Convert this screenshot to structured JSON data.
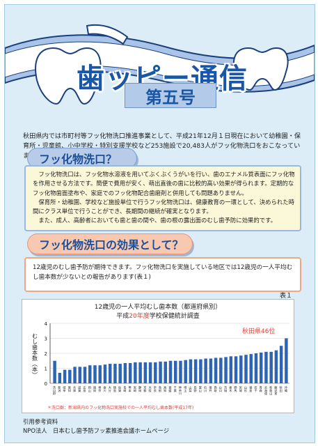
{
  "masthead": {
    "title": "歯ッピー通信",
    "issue": "第五号"
  },
  "intro": "秋田県内では市町村等フッ化物洗口推進事業として、平成21年12月１日現在において幼稚園・保育所・児童館、小中学校・特別支援学校など253施設で20,483人がフッ化物洗口をおこなっています。",
  "section1": {
    "heading": "フッ化物洗口？",
    "paragraphs": [
      "フッ化物洗口は、フッ化物水溶液を用いてぶくぶくうがいを行い、歯のエナメル質表面にフッ化物を作用させる方法です。簡便で費用が安く、萌出直後の歯に比較的高い効果が得られます。定期的なフッ化物歯面塗布や、家庭でのフッ化物配合歯磨剤と併用しても問題ありません。",
      "保育所・幼稚園、学校など施設単位で行うフッ化物洗口は、健康教育の一環として、決められた時間にクラス単位で行うことができ、長期間の継続が確実となります。",
      "また、成人、高齢者においても歯と歯の間や、歯の根の露出面のむし歯予防に効果的です。"
    ]
  },
  "section2": {
    "heading": "フッ化物洗口の効果として？",
    "text": "12歳児のむし歯予防が期待できます。フッ化物洗口を実施している地区では12歳児の一人平均むし歯本数が少ないとの報告があります(表１)"
  },
  "table_label": "表１",
  "chart_data": {
    "type": "bar",
    "title_line1": "12歳児の一人平均むし歯本数（都道府県別）",
    "title_line2_pre": "平成",
    "title_line2_highlight": "20年度",
    "title_line2_post": "学校保健統計調査",
    "ylabel": "むし歯本数（本）",
    "ylim": [
      0,
      4
    ],
    "yticks": [
      0,
      1,
      2,
      3,
      4
    ],
    "callout": "秋田県46位",
    "footnote": "＊洗口群：新潟県内のフッ化物洗口実施校での一人平均むし歯本数(平成17年)",
    "categories": [
      "洗口群",
      "新潟",
      "岐阜",
      "愛知",
      "兵庫",
      "滋賀",
      "広島",
      "岡山",
      "福岡",
      "東京",
      "香川",
      "大分",
      "徳島",
      "佐賀",
      "長崎",
      "熊本",
      "宮崎",
      "静岡",
      "京都",
      "大阪",
      "奈良",
      "島根",
      "高知",
      "愛媛",
      "千葉",
      "神奈川",
      "埼玉",
      "山梨",
      "長野",
      "富山",
      "石川",
      "福井",
      "鳥取",
      "山口",
      "茨城",
      "栃木",
      "群馬",
      "宮城",
      "山形",
      "福島",
      "岩手",
      "青森",
      "北海道",
      "和歌山",
      "鹿児島",
      "秋田",
      "沖縄"
    ],
    "values": [
      1.5,
      0.7,
      0.9,
      0.9,
      1.1,
      1.1,
      1.1,
      1.2,
      1.2,
      1.2,
      1.25,
      1.3,
      1.3,
      1.3,
      1.35,
      1.35,
      1.4,
      1.4,
      1.4,
      1.4,
      1.4,
      1.45,
      1.45,
      1.5,
      1.5,
      1.5,
      1.55,
      1.6,
      1.6,
      1.6,
      1.65,
      1.65,
      1.7,
      1.7,
      1.75,
      1.8,
      1.8,
      1.85,
      1.9,
      1.95,
      2.0,
      2.05,
      2.1,
      2.1,
      2.2,
      2.5,
      3.0
    ],
    "colors": {
      "bar": "#2d64b4",
      "highlight": "#d8423c",
      "axis": "#333333"
    }
  },
  "references": {
    "line1": "引用参考資料",
    "line2": "NPO法人　日本むし歯予防フッ素推進会議ホームページ"
  }
}
